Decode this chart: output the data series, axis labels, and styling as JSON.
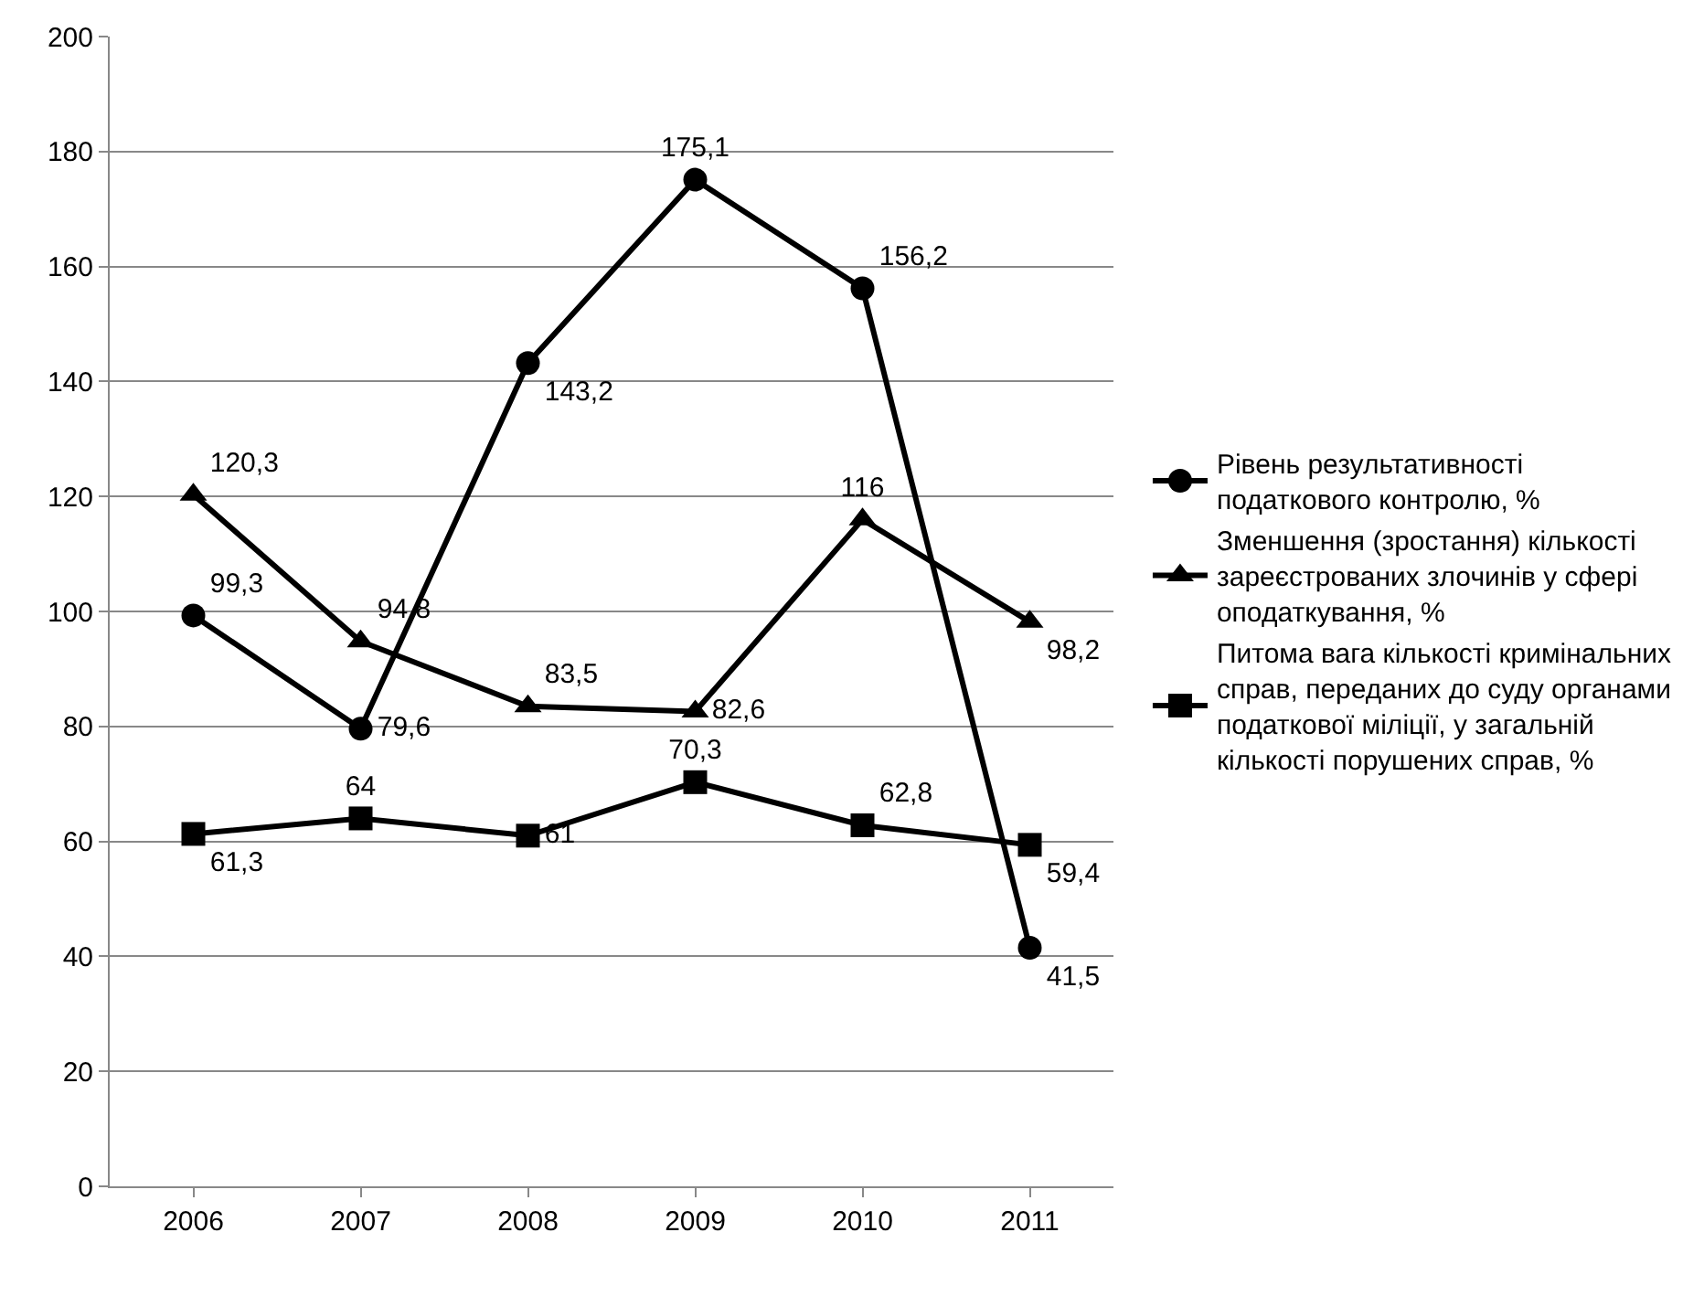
{
  "chart_data": {
    "type": "line",
    "categories": [
      "2006",
      "2007",
      "2008",
      "2009",
      "2010",
      "2011"
    ],
    "series": [
      {
        "name": "Рівень результативності податкового контролю, %",
        "color": "#000000",
        "marker": "circle",
        "values": [
          99.3,
          79.6,
          143.2,
          175.1,
          156.2,
          41.5
        ],
        "value_labels": [
          "99,3",
          "79,6",
          "143,2",
          "175,1",
          "156,2",
          "41,5"
        ]
      },
      {
        "name": "Зменшення (зростання) кількості зареєстрованих злочинів у сфері оподаткування, %",
        "color": "#000000",
        "marker": "triangle",
        "values": [
          120.3,
          94.8,
          83.5,
          82.6,
          116,
          98.2
        ],
        "value_labels": [
          "120,3",
          "94,8",
          "83,5",
          "82,6",
          "116",
          "98,2"
        ]
      },
      {
        "name": "Питома вага кількості кримінальних справ, переданих до суду органами податкової міліції, у загальній кількості порушених справ, %",
        "color": "#000000",
        "marker": "square",
        "values": [
          61.3,
          64,
          61,
          70.3,
          62.8,
          59.4
        ],
        "value_labels": [
          "61,3",
          "64",
          "61",
          "70,3",
          "62,8",
          "59,4"
        ]
      }
    ],
    "ylim": [
      0,
      200
    ],
    "yticks": [
      0,
      20,
      40,
      60,
      80,
      100,
      120,
      140,
      160,
      180,
      200
    ],
    "grid": "y",
    "legend": "right",
    "line_style": "solid"
  }
}
